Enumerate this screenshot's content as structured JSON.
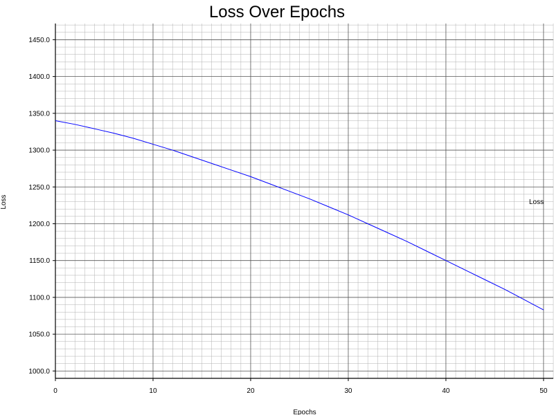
{
  "chart_data": {
    "type": "line",
    "title": "Loss Over Epochs",
    "xlabel": "Epochs",
    "ylabel": "Loss",
    "xlim": [
      0,
      51
    ],
    "ylim": [
      990,
      1472
    ],
    "xticks": [
      0,
      10,
      20,
      30,
      40,
      50
    ],
    "xtick_labels": [
      "0",
      "10",
      "20",
      "30",
      "40",
      "50"
    ],
    "yticks": [
      1000,
      1050,
      1100,
      1150,
      1200,
      1250,
      1300,
      1350,
      1400,
      1450
    ],
    "ytick_labels": [
      "1000.0",
      "1050.0",
      "1100.0",
      "1150.0",
      "1200.0",
      "1250.0",
      "1300.0",
      "1350.0",
      "1400.0",
      "1450.0"
    ],
    "grid": true,
    "legend_position": "right",
    "series": [
      {
        "name": "Loss",
        "color": "#0000ff",
        "x": [
          0,
          2,
          4,
          6,
          8,
          10,
          12,
          14,
          16,
          18,
          20,
          22,
          24,
          26,
          28,
          30,
          32,
          34,
          36,
          38,
          40,
          42,
          44,
          46,
          48,
          50
        ],
        "y": [
          1340,
          1335,
          1329,
          1323,
          1316,
          1308,
          1300,
          1291,
          1282,
          1273,
          1264,
          1254,
          1244,
          1234,
          1223,
          1212,
          1200,
          1188,
          1176,
          1163,
          1150,
          1137,
          1124,
          1111,
          1097,
          1083
        ]
      }
    ]
  }
}
